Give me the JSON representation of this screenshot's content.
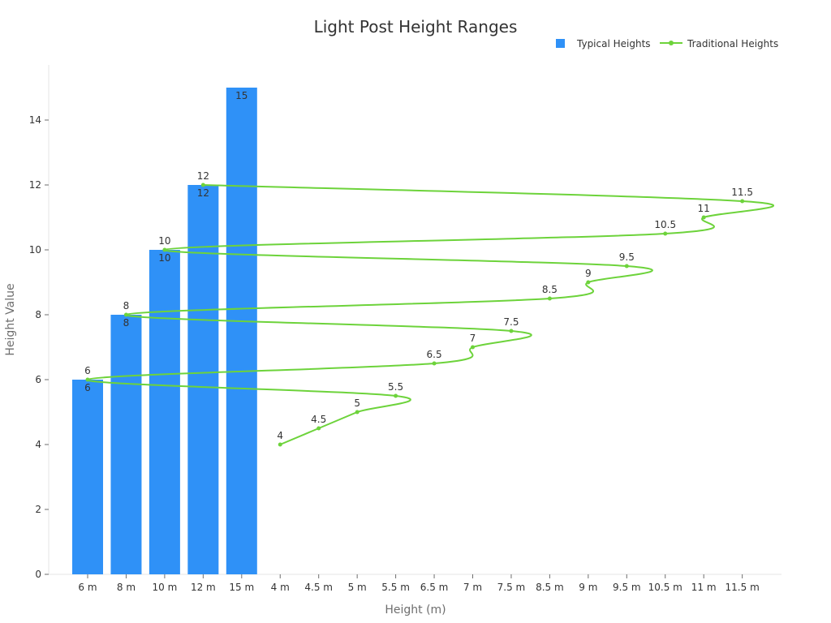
{
  "chart_data": {
    "type": "bar",
    "title": "Light Post Height Ranges",
    "xlabel": "Height (m)",
    "ylabel": "Height Value",
    "ylim": [
      0,
      15.7
    ],
    "yticks": [
      "0",
      "2",
      "4",
      "6",
      "8",
      "10",
      "12",
      "14"
    ],
    "categories": [
      "6 m",
      "8 m",
      "10 m",
      "12 m",
      "15 m",
      "4 m",
      "4.5 m",
      "5 m",
      "5.5 m",
      "6.5 m",
      "7 m",
      "7.5 m",
      "8.5 m",
      "9 m",
      "9.5 m",
      "10.5 m",
      "11 m",
      "11.5 m"
    ],
    "legend_position": "top-right",
    "grid": false,
    "series": [
      {
        "name": "Typical Heights",
        "type": "bar",
        "color": "#2f91f7",
        "points": [
          {
            "x": "6 m",
            "y": 6,
            "label": "6"
          },
          {
            "x": "8 m",
            "y": 8,
            "label": "8"
          },
          {
            "x": "10 m",
            "y": 10,
            "label": "10"
          },
          {
            "x": "12 m",
            "y": 12,
            "label": "12"
          },
          {
            "x": "15 m",
            "y": 15,
            "label": "15"
          }
        ]
      },
      {
        "name": "Traditional Heights",
        "type": "line",
        "color": "#6dd33b",
        "points": [
          {
            "x": "4 m",
            "y": 4,
            "label": "4"
          },
          {
            "x": "4.5 m",
            "y": 4.5,
            "label": "4.5"
          },
          {
            "x": "5 m",
            "y": 5,
            "label": "5"
          },
          {
            "x": "5.5 m",
            "y": 5.5,
            "label": "5.5"
          },
          {
            "x": "6 m",
            "y": 6,
            "label": "6"
          },
          {
            "x": "6.5 m",
            "y": 6.5,
            "label": "6.5"
          },
          {
            "x": "7 m",
            "y": 7,
            "label": "7"
          },
          {
            "x": "7.5 m",
            "y": 7.5,
            "label": "7.5"
          },
          {
            "x": "8 m",
            "y": 8,
            "label": "8"
          },
          {
            "x": "8.5 m",
            "y": 8.5,
            "label": "8.5"
          },
          {
            "x": "9 m",
            "y": 9,
            "label": "9"
          },
          {
            "x": "9.5 m",
            "y": 9.5,
            "label": "9.5"
          },
          {
            "x": "10 m",
            "y": 10,
            "label": "10"
          },
          {
            "x": "10.5 m",
            "y": 10.5,
            "label": "10.5"
          },
          {
            "x": "11 m",
            "y": 11,
            "label": "11"
          },
          {
            "x": "11.5 m",
            "y": 11.5,
            "label": "11.5"
          },
          {
            "x": "12 m",
            "y": 12,
            "label": "12"
          }
        ]
      }
    ]
  }
}
